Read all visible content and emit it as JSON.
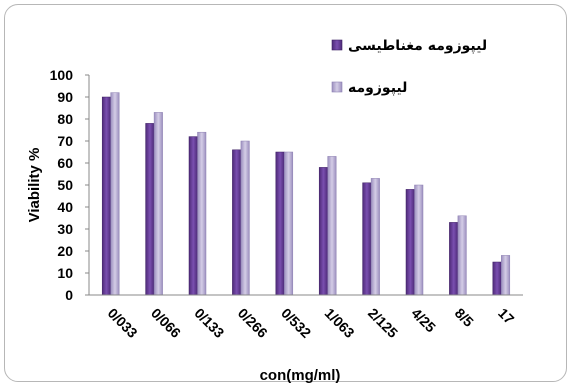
{
  "chart_data": {
    "type": "bar",
    "title": "",
    "xlabel": "con(mg/ml)",
    "ylabel": "Viability %",
    "ylim": [
      0,
      100
    ],
    "yticks": [
      0,
      10,
      20,
      30,
      40,
      50,
      60,
      70,
      80,
      90,
      100
    ],
    "categories": [
      "0/033",
      "0/066",
      "0/133",
      "0/266",
      "0/532",
      "1/063",
      "2/125",
      "4/25",
      "8/5",
      "17"
    ],
    "series": [
      {
        "name": "لیپوزومه مغناطیسی",
        "color": "#6a3d9a",
        "values": [
          90,
          78,
          72,
          66,
          65,
          58,
          51,
          48,
          33,
          15
        ]
      },
      {
        "name": "لیپوزومه",
        "color": "#b3a8cf",
        "values": [
          92,
          83,
          74,
          70,
          65,
          63,
          53,
          50,
          36,
          18
        ]
      }
    ],
    "legend_position": "top-right",
    "grid": false
  }
}
